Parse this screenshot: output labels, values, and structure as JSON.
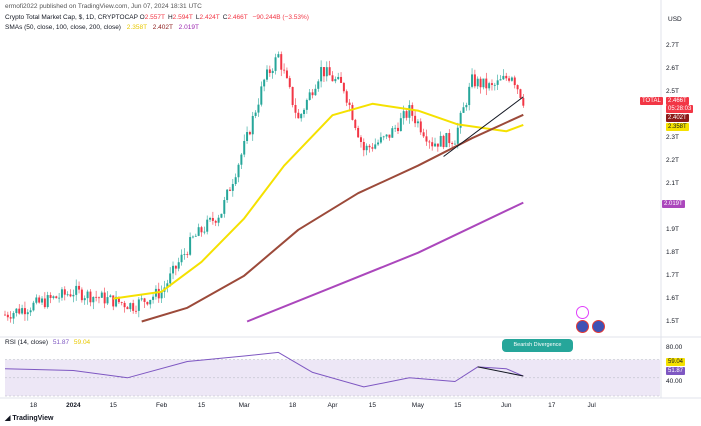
{
  "header": {
    "publisher": "ermofi2022 published on TradingView.com, Jun 07, 2024 18:31 UTC",
    "symbol": "Crypto Total Market Cap, $, 1D, CRYPTOCAP",
    "ohlc": [
      {
        "label": "O",
        "value": "2.557T"
      },
      {
        "label": "H",
        "value": "2.594T"
      },
      {
        "label": "L",
        "value": "2.424T"
      },
      {
        "label": "C",
        "value": "2.466T"
      }
    ],
    "change": "−90.244B (−3.53%)",
    "sma_label": "SMAs (50, close, 100, close, 200, close)",
    "sma50_value": "2.358T",
    "sma100_value": "2.402T",
    "sma200_value": "2.019T"
  },
  "currency": "USD",
  "y_axis_labels": [
    "2.7T",
    "2.6T",
    "2.5T",
    "2.3T",
    "2.2T",
    "2.1T",
    "1.9T",
    "1.8T",
    "1.7T",
    "1.6T",
    "1.5T"
  ],
  "y_axis_label_values": [
    2.7,
    2.6,
    2.5,
    2.3,
    2.2,
    2.1,
    1.9,
    1.8,
    1.7,
    1.6,
    1.5
  ],
  "price_tags": {
    "total_label": "TOTAL",
    "total_value": "2.466T",
    "countdown": "05:28:03",
    "sma100": "2.402T",
    "sma50": "2.358T",
    "sma200": "2.019T"
  },
  "x_axis_labels": [
    "18",
    "2024",
    "15",
    "Feb",
    "15",
    "Mar",
    "18",
    "Apr",
    "15",
    "May",
    "15",
    "Jun",
    "17",
    "Jul"
  ],
  "x_axis_label_days": [
    -14,
    0,
    14,
    31,
    45,
    60,
    77,
    91,
    105,
    121,
    135,
    152,
    168,
    182
  ],
  "rsi": {
    "label": "RSI (14, close)",
    "value": "51.87",
    "sma_value": "59.04",
    "axis_labels": [
      "80.00",
      "40.00"
    ],
    "tag_sma": "59.04",
    "tag_rsi": "51.87"
  },
  "annotation": "Bearish Divergence",
  "footer": "TradingView",
  "colors": {
    "up": "#26a69a",
    "down": "#f23645",
    "sma50": "#f5e100",
    "sma100": "#9c4a3a",
    "sma200": "#ab47bc",
    "rsi_line": "#7e57c2",
    "rsi_band": "#ede7f6"
  },
  "chart_data": {
    "type": "candlestick",
    "x_unit": "date",
    "y_unit": "USD (trillions)",
    "ylim": [
      1.45,
      2.75
    ],
    "xlim": [
      "2023-12-08",
      "2024-07-25"
    ],
    "close_series": {
      "dates": [
        "2023-12-08",
        "2023-12-20",
        "2024-01-01",
        "2024-01-12",
        "2024-01-22",
        "2024-02-01",
        "2024-02-12",
        "2024-02-22",
        "2024-03-02",
        "2024-03-08",
        "2024-03-13",
        "2024-03-20",
        "2024-03-28",
        "2024-04-05",
        "2024-04-12",
        "2024-04-20",
        "2024-04-28",
        "2024-05-06",
        "2024-05-14",
        "2024-05-20",
        "2024-05-27",
        "2024-06-03",
        "2024-06-07"
      ],
      "values": [
        1.53,
        1.58,
        1.63,
        1.6,
        1.57,
        1.63,
        1.86,
        1.98,
        2.3,
        2.55,
        2.66,
        2.38,
        2.6,
        2.52,
        2.25,
        2.3,
        2.42,
        2.28,
        2.3,
        2.55,
        2.52,
        2.58,
        2.466
      ]
    },
    "sma50": {
      "dates": [
        "2024-01-15",
        "2024-02-01",
        "2024-02-15",
        "2024-03-01",
        "2024-03-15",
        "2024-04-01",
        "2024-04-15",
        "2024-05-01",
        "2024-05-15",
        "2024-06-01",
        "2024-06-07"
      ],
      "values": [
        1.6,
        1.63,
        1.76,
        1.95,
        2.18,
        2.4,
        2.45,
        2.42,
        2.36,
        2.33,
        2.358
      ]
    },
    "sma100": {
      "dates": [
        "2024-01-25",
        "2024-02-10",
        "2024-03-01",
        "2024-03-20",
        "2024-04-10",
        "2024-05-01",
        "2024-05-20",
        "2024-06-07"
      ],
      "values": [
        1.5,
        1.56,
        1.7,
        1.9,
        2.06,
        2.18,
        2.3,
        2.402
      ]
    },
    "sma200": {
      "dates": [
        "2024-03-02",
        "2024-04-01",
        "2024-05-01",
        "2024-06-07"
      ],
      "values": [
        1.5,
        1.65,
        1.8,
        2.019
      ]
    },
    "rsi": {
      "ylim": [
        30,
        85
      ],
      "dates": [
        "2023-12-08",
        "2024-01-01",
        "2024-01-20",
        "2024-02-10",
        "2024-03-01",
        "2024-03-13",
        "2024-03-25",
        "2024-04-12",
        "2024-04-28",
        "2024-05-14",
        "2024-05-22",
        "2024-06-01",
        "2024-06-07"
      ],
      "values": [
        60,
        58,
        50,
        68,
        74,
        78,
        56,
        40,
        50,
        46,
        62,
        60,
        51.87
      ]
    }
  }
}
